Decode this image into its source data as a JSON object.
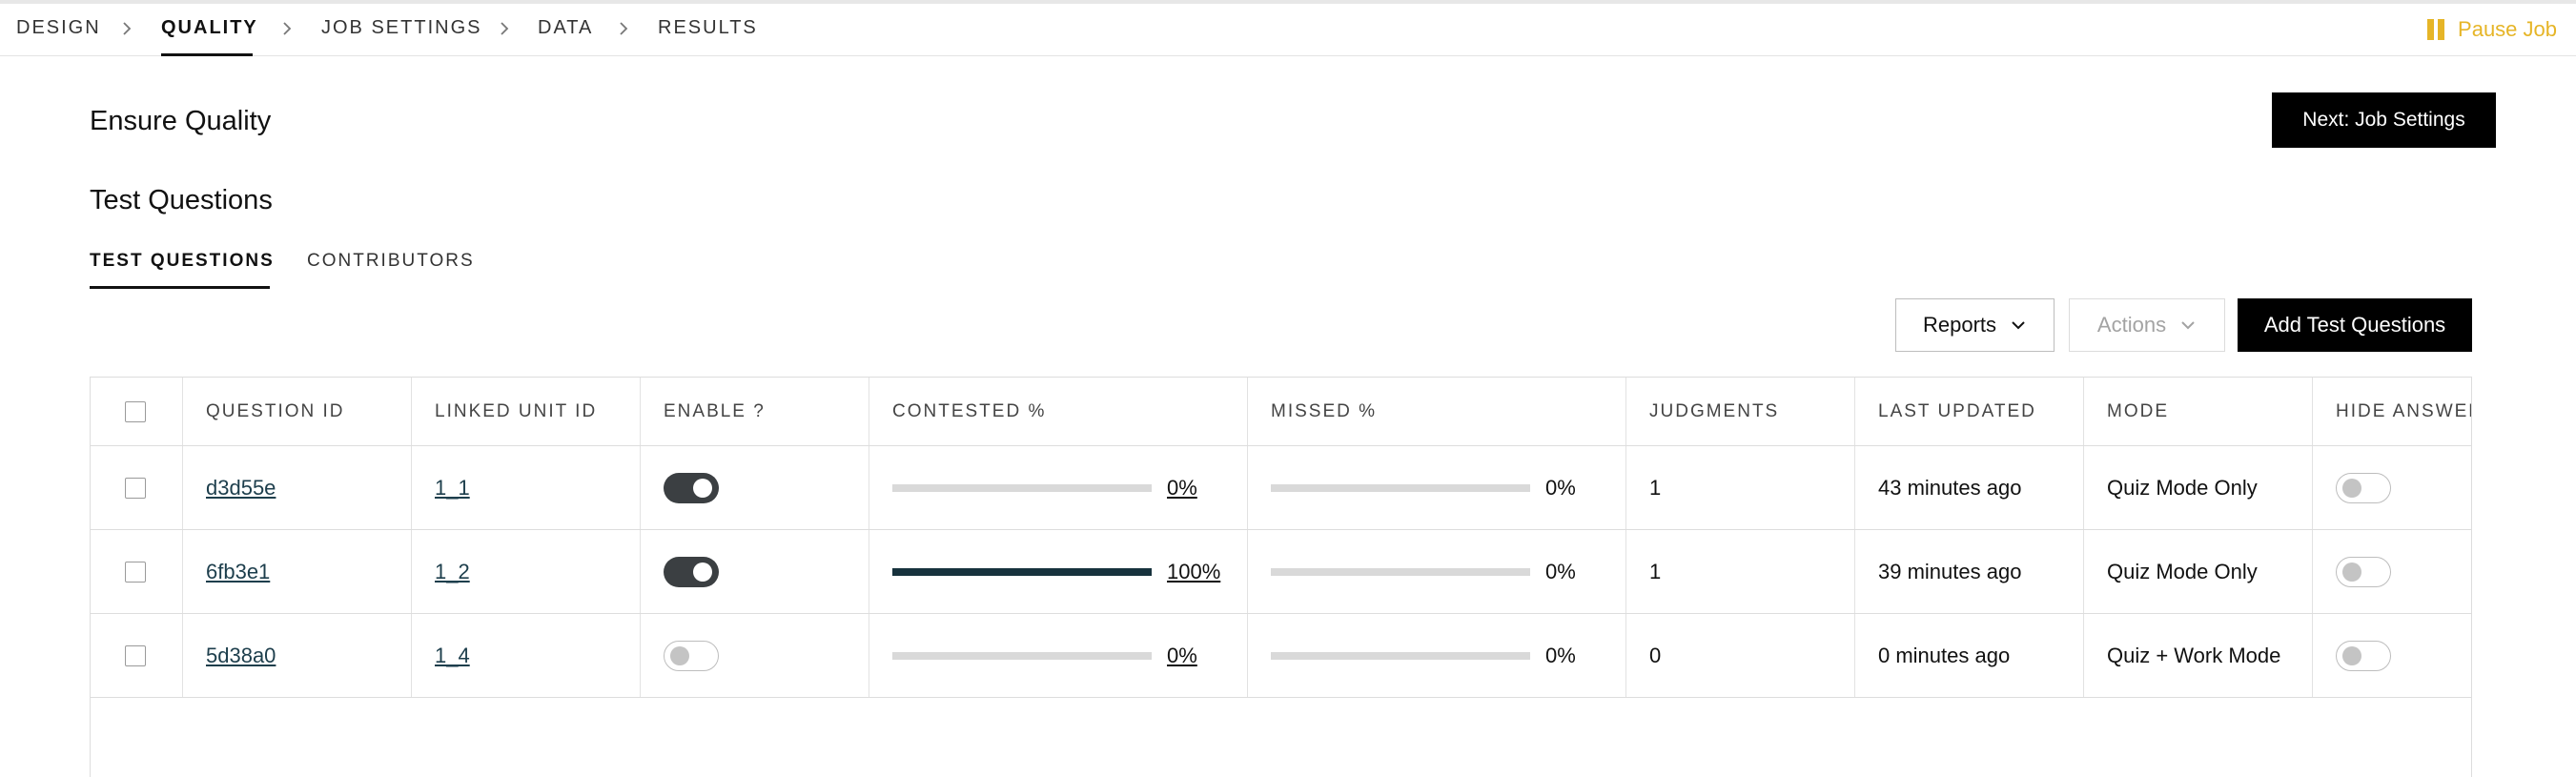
{
  "nav": {
    "steps": [
      {
        "label": "DESIGN",
        "active": false
      },
      {
        "label": "QUALITY",
        "active": true
      },
      {
        "label": "JOB SETTINGS",
        "active": false
      },
      {
        "label": "DATA",
        "active": false
      },
      {
        "label": "RESULTS",
        "active": false
      }
    ],
    "pause_label": "Pause Job"
  },
  "page": {
    "title": "Ensure Quality",
    "next_button": "Next: Job Settings",
    "section_title": "Test Questions"
  },
  "tabs": [
    {
      "label": "TEST QUESTIONS",
      "active": true
    },
    {
      "label": "CONTRIBUTORS",
      "active": false
    }
  ],
  "toolbar": {
    "reports_label": "Reports",
    "actions_label": "Actions",
    "add_label": "Add Test Questions"
  },
  "table": {
    "headers": [
      "QUESTION ID",
      "LINKED UNIT ID",
      "ENABLE ?",
      "CONTESTED %",
      "MISSED %",
      "JUDGMENTS",
      "LAST UPDATED",
      "MODE",
      "HIDE ANSWER"
    ],
    "rows": [
      {
        "question_id": "d3d55e",
        "linked_unit_id": "1_1",
        "enabled": true,
        "contested_pct": "0%",
        "contested_value": 0,
        "missed_pct": "0%",
        "missed_value": 0,
        "judgments": "1",
        "last_updated": "43 minutes ago",
        "mode": "Quiz Mode Only",
        "hide_answer": false
      },
      {
        "question_id": "6fb3e1",
        "linked_unit_id": "1_2",
        "enabled": true,
        "contested_pct": "100%",
        "contested_value": 1,
        "missed_pct": "0%",
        "missed_value": 0,
        "judgments": "1",
        "last_updated": "39 minutes ago",
        "mode": "Quiz Mode Only",
        "hide_answer": false
      },
      {
        "question_id": "5d38a0",
        "linked_unit_id": "1_4",
        "enabled": false,
        "contested_pct": "0%",
        "contested_value": 0,
        "missed_pct": "0%",
        "missed_value": 0,
        "judgments": "0",
        "last_updated": "0 minutes ago",
        "mode": "Quiz + Work Mode",
        "hide_answer": false
      }
    ]
  },
  "colors": {
    "accent": "#e6b527",
    "bar_fill": "#17323d",
    "bar_track": "#d9d9d9",
    "toggle_on": "#3b3f42",
    "link": "#1d3e4c"
  },
  "icons": {
    "chevron": "chevron-right-icon",
    "pause": "pause-icon",
    "dropdown": "chevron-down-icon"
  }
}
